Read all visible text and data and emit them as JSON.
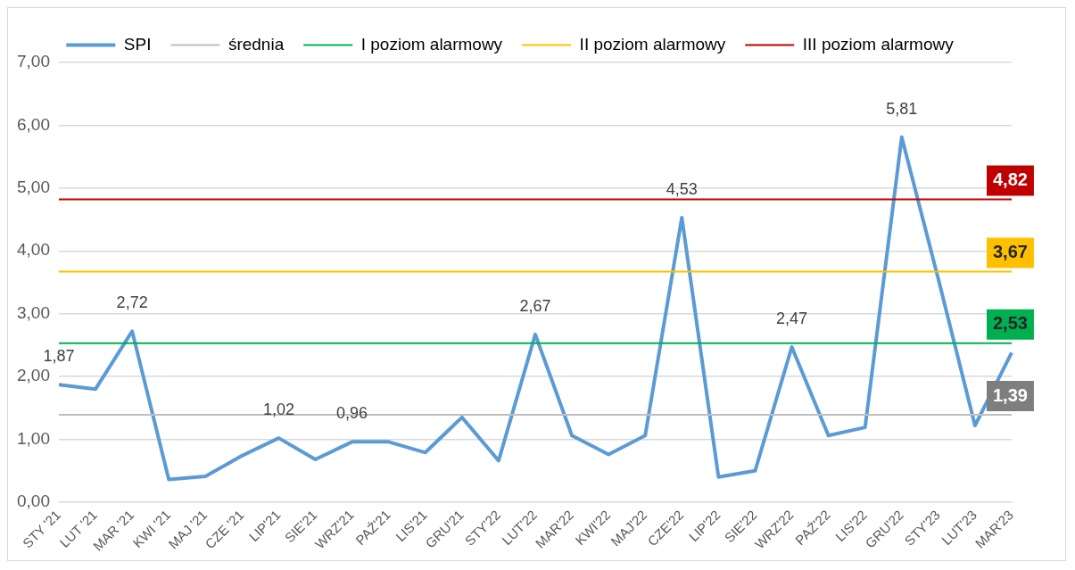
{
  "chart_data": {
    "type": "line",
    "categories": [
      "STY '21",
      "LUT '21",
      "MAR '21",
      "KWI '21",
      "MAJ '21",
      "CZE '21",
      "LIP'21",
      "SIE'21",
      "WRZ'21",
      "PAŹ'21",
      "LIS'21",
      "GRU'21",
      "STY'22",
      "LUT'22",
      "MAR'22",
      "KWI'22",
      "MAJ'22",
      "CZE'22",
      "LIP'22",
      "SIE'22",
      "WRZ'22",
      "PAŹ'22",
      "LIS'22",
      "GRU'22",
      "STY'23",
      "LUT'23",
      "MAR'23"
    ],
    "series": [
      {
        "name": "SPI",
        "color": "#5b9bd5",
        "values": [
          1.87,
          1.8,
          2.72,
          0.36,
          0.41,
          0.74,
          1.02,
          0.68,
          0.96,
          0.96,
          0.79,
          1.35,
          0.66,
          2.67,
          1.06,
          0.76,
          1.06,
          4.53,
          0.4,
          0.5,
          2.47,
          1.06,
          1.19,
          5.81,
          3.55,
          1.22,
          2.38
        ],
        "value_labels": [
          "1,87",
          null,
          "2,72",
          null,
          null,
          null,
          "1,02",
          null,
          "0,96",
          null,
          null,
          null,
          null,
          "2,67",
          null,
          null,
          null,
          "4,53",
          null,
          null,
          "2,47",
          null,
          null,
          "5,81",
          null,
          null,
          null
        ]
      },
      {
        "name": "średnia",
        "color": "#bfbfbf",
        "values": [
          1.39,
          1.39,
          1.39,
          1.39,
          1.39,
          1.39,
          1.39,
          1.39,
          1.39,
          1.39,
          1.39,
          1.39,
          1.39,
          1.39,
          1.39,
          1.39,
          1.39,
          1.39,
          1.39,
          1.39,
          1.39,
          1.39,
          1.39,
          1.39,
          1.39,
          1.39,
          1.39
        ],
        "value_labels": [
          null,
          null,
          null,
          null,
          null,
          null,
          null,
          null,
          null,
          null,
          null,
          null,
          null,
          null,
          null,
          null,
          null,
          null,
          null,
          null,
          null,
          null,
          null,
          null,
          null,
          null,
          "1,39"
        ]
      },
      {
        "name": "I poziom alarmowy",
        "color": "#00b050",
        "values": [
          2.53,
          2.53,
          2.53,
          2.53,
          2.53,
          2.53,
          2.53,
          2.53,
          2.53,
          2.53,
          2.53,
          2.53,
          2.53,
          2.53,
          2.53,
          2.53,
          2.53,
          2.53,
          2.53,
          2.53,
          2.53,
          2.53,
          2.53,
          2.53,
          2.53,
          2.53,
          2.53
        ],
        "value_labels": [
          null,
          null,
          null,
          null,
          null,
          null,
          null,
          null,
          null,
          null,
          null,
          null,
          null,
          null,
          null,
          null,
          null,
          null,
          null,
          null,
          null,
          null,
          null,
          null,
          null,
          null,
          "2,53"
        ]
      },
      {
        "name": "II poziom alarmowy",
        "color": "#ffc000",
        "values": [
          3.67,
          3.67,
          3.67,
          3.67,
          3.67,
          3.67,
          3.67,
          3.67,
          3.67,
          3.67,
          3.67,
          3.67,
          3.67,
          3.67,
          3.67,
          3.67,
          3.67,
          3.67,
          3.67,
          3.67,
          3.67,
          3.67,
          3.67,
          3.67,
          3.67,
          3.67,
          3.67
        ],
        "value_labels": [
          null,
          null,
          null,
          null,
          null,
          null,
          null,
          null,
          null,
          null,
          null,
          null,
          null,
          null,
          null,
          null,
          null,
          null,
          null,
          null,
          null,
          null,
          null,
          null,
          null,
          null,
          "3,67"
        ]
      },
      {
        "name": "III poziom alarmowy",
        "color": "#c00000",
        "values": [
          4.82,
          4.82,
          4.82,
          4.82,
          4.82,
          4.82,
          4.82,
          4.82,
          4.82,
          4.82,
          4.82,
          4.82,
          4.82,
          4.82,
          4.82,
          4.82,
          4.82,
          4.82,
          4.82,
          4.82,
          4.82,
          4.82,
          4.82,
          4.82,
          4.82,
          4.82,
          4.82
        ],
        "value_labels": [
          null,
          null,
          null,
          null,
          null,
          null,
          null,
          null,
          null,
          null,
          null,
          null,
          null,
          null,
          null,
          null,
          null,
          null,
          null,
          null,
          null,
          null,
          null,
          null,
          null,
          null,
          "4,82"
        ]
      }
    ],
    "ylim": [
      0,
      7
    ],
    "yticks": [
      {
        "value": 0,
        "label": "0,00"
      },
      {
        "value": 1,
        "label": "1,00"
      },
      {
        "value": 2,
        "label": "2,00"
      },
      {
        "value": 3,
        "label": "3,00"
      },
      {
        "value": 4,
        "label": "4,00"
      },
      {
        "value": 5,
        "label": "5,00"
      },
      {
        "value": 6,
        "label": "6,00"
      },
      {
        "value": 7,
        "label": "7,00"
      }
    ],
    "grid": "y",
    "legend": "top",
    "marker": "none",
    "line_style": "solid"
  }
}
